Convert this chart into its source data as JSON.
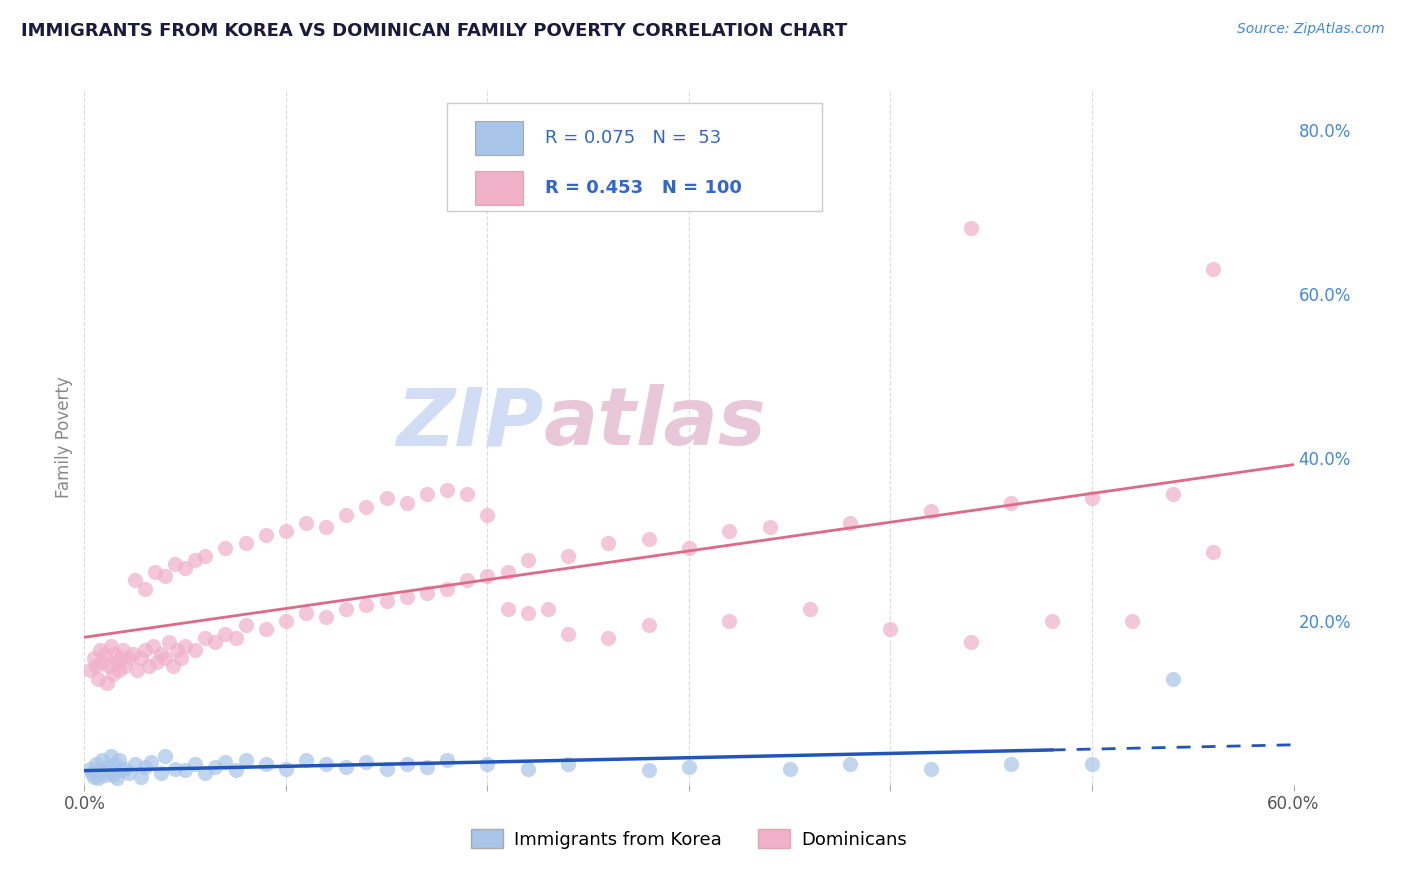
{
  "title": "IMMIGRANTS FROM KOREA VS DOMINICAN FAMILY POVERTY CORRELATION CHART",
  "source": "Source: ZipAtlas.com",
  "ylabel": "Family Poverty",
  "xlim": [
    0.0,
    0.6
  ],
  "ylim": [
    0.0,
    0.85
  ],
  "ytick_labels_right": [
    "80.0%",
    "60.0%",
    "40.0%",
    "20.0%"
  ],
  "ytick_positions_right": [
    0.8,
    0.6,
    0.4,
    0.2
  ],
  "korea_color": "#a8c4e8",
  "dominican_color": "#f0b0c8",
  "korea_line_color": "#2255bb",
  "dominican_line_color": "#e06888",
  "watermark_zip_color": "#d0ddf5",
  "watermark_atlas_color": "#e8c8d8",
  "legend_korea_label": "Immigrants from Korea",
  "legend_dominican_label": "Dominicans",
  "korea_R": 0.075,
  "korea_N": 53,
  "dominican_R": 0.453,
  "dominican_N": 100,
  "korea_scatter_x": [
    0.003,
    0.004,
    0.005,
    0.006,
    0.007,
    0.008,
    0.009,
    0.01,
    0.011,
    0.012,
    0.013,
    0.014,
    0.015,
    0.016,
    0.017,
    0.018,
    0.02,
    0.022,
    0.025,
    0.028,
    0.03,
    0.033,
    0.038,
    0.04,
    0.045,
    0.05,
    0.055,
    0.06,
    0.065,
    0.07,
    0.075,
    0.08,
    0.09,
    0.1,
    0.11,
    0.12,
    0.13,
    0.14,
    0.15,
    0.16,
    0.17,
    0.18,
    0.2,
    0.22,
    0.24,
    0.28,
    0.3,
    0.35,
    0.38,
    0.42,
    0.46,
    0.5,
    0.54
  ],
  "korea_scatter_y": [
    0.02,
    0.015,
    0.01,
    0.025,
    0.008,
    0.018,
    0.03,
    0.012,
    0.022,
    0.016,
    0.035,
    0.012,
    0.025,
    0.008,
    0.03,
    0.018,
    0.02,
    0.015,
    0.025,
    0.01,
    0.022,
    0.028,
    0.015,
    0.035,
    0.02,
    0.018,
    0.025,
    0.015,
    0.022,
    0.028,
    0.018,
    0.03,
    0.025,
    0.02,
    0.03,
    0.025,
    0.022,
    0.028,
    0.02,
    0.025,
    0.022,
    0.03,
    0.025,
    0.02,
    0.025,
    0.018,
    0.022,
    0.02,
    0.025,
    0.02,
    0.025,
    0.025,
    0.13
  ],
  "dominican_scatter_x": [
    0.003,
    0.005,
    0.006,
    0.007,
    0.008,
    0.009,
    0.01,
    0.011,
    0.012,
    0.013,
    0.014,
    0.015,
    0.016,
    0.017,
    0.018,
    0.019,
    0.02,
    0.022,
    0.024,
    0.026,
    0.028,
    0.03,
    0.032,
    0.034,
    0.036,
    0.038,
    0.04,
    0.042,
    0.044,
    0.046,
    0.048,
    0.05,
    0.055,
    0.06,
    0.065,
    0.07,
    0.075,
    0.08,
    0.09,
    0.1,
    0.11,
    0.12,
    0.13,
    0.14,
    0.15,
    0.16,
    0.17,
    0.18,
    0.19,
    0.2,
    0.21,
    0.22,
    0.24,
    0.26,
    0.28,
    0.3,
    0.32,
    0.34,
    0.38,
    0.42,
    0.46,
    0.5,
    0.54,
    0.56,
    0.025,
    0.03,
    0.035,
    0.04,
    0.045,
    0.05,
    0.055,
    0.06,
    0.07,
    0.08,
    0.09,
    0.1,
    0.11,
    0.12,
    0.13,
    0.14,
    0.15,
    0.16,
    0.17,
    0.18,
    0.19,
    0.2,
    0.21,
    0.22,
    0.23,
    0.24,
    0.26,
    0.28,
    0.32,
    0.36,
    0.4,
    0.44,
    0.48,
    0.52,
    0.56,
    0.44
  ],
  "dominican_scatter_y": [
    0.14,
    0.155,
    0.145,
    0.13,
    0.165,
    0.15,
    0.16,
    0.125,
    0.145,
    0.17,
    0.135,
    0.16,
    0.15,
    0.14,
    0.155,
    0.165,
    0.145,
    0.155,
    0.16,
    0.14,
    0.155,
    0.165,
    0.145,
    0.17,
    0.15,
    0.16,
    0.155,
    0.175,
    0.145,
    0.165,
    0.155,
    0.17,
    0.165,
    0.18,
    0.175,
    0.185,
    0.18,
    0.195,
    0.19,
    0.2,
    0.21,
    0.205,
    0.215,
    0.22,
    0.225,
    0.23,
    0.235,
    0.24,
    0.25,
    0.255,
    0.26,
    0.275,
    0.28,
    0.295,
    0.3,
    0.29,
    0.31,
    0.315,
    0.32,
    0.335,
    0.345,
    0.35,
    0.355,
    0.285,
    0.25,
    0.24,
    0.26,
    0.255,
    0.27,
    0.265,
    0.275,
    0.28,
    0.29,
    0.295,
    0.305,
    0.31,
    0.32,
    0.315,
    0.33,
    0.34,
    0.35,
    0.345,
    0.355,
    0.36,
    0.355,
    0.33,
    0.215,
    0.21,
    0.215,
    0.185,
    0.18,
    0.195,
    0.2,
    0.215,
    0.19,
    0.175,
    0.2,
    0.2,
    0.63,
    0.68
  ],
  "background_color": "#ffffff",
  "grid_color": "#cccccc",
  "title_color": "#1a1a3a",
  "axis_label_color": "#888888",
  "right_tick_color": "#4488dd",
  "source_color": "#4488dd"
}
